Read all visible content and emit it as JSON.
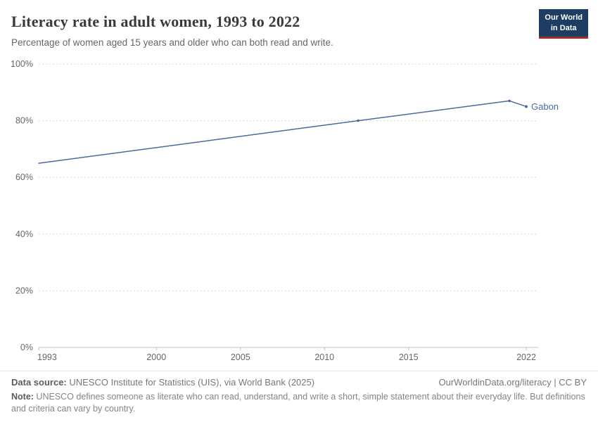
{
  "header": {
    "title": "Literacy rate in adult women, 1993 to 2022",
    "subtitle": "Percentage of women aged 15 years and older who can both read and write.",
    "logo_line1": "Our World",
    "logo_line2": "in Data"
  },
  "chart_data": {
    "type": "line",
    "title": "Literacy rate in adult women, 1993 to 2022",
    "xlabel": "",
    "ylabel": "",
    "xlim": [
      1993,
      2022
    ],
    "ylim": [
      0,
      100
    ],
    "x_ticks": [
      1993,
      2000,
      2005,
      2010,
      2015,
      2022
    ],
    "y_ticks": [
      0,
      20,
      40,
      60,
      80,
      100
    ],
    "y_tick_suffix": "%",
    "grid": "horizontal-dotted",
    "legend_position": "end-of-line-label",
    "series": [
      {
        "name": "Gabon",
        "color": "#4C6A9C",
        "points": [
          [
            1993,
            65
          ],
          [
            2012,
            80
          ],
          [
            2021,
            87
          ],
          [
            2022,
            85
          ]
        ]
      }
    ]
  },
  "footer": {
    "data_source_label": "Data source:",
    "data_source": " UNESCO Institute for Statistics (UIS), via World Bank (2025)",
    "link": "OurWorldinData.org/literacy | CC BY",
    "note_label": "Note:",
    "note": " UNESCO defines someone as literate who can read, understand, and write a short, simple statement about their everyday life. But definitions and criteria can vary by country."
  },
  "colors": {
    "series": "#4C6A9C",
    "grid": "#d9d9d9",
    "axis": "#c2c2c2",
    "tick_text": "#666666",
    "logo_bg": "#1d3d63",
    "logo_accent": "#a62b21"
  }
}
